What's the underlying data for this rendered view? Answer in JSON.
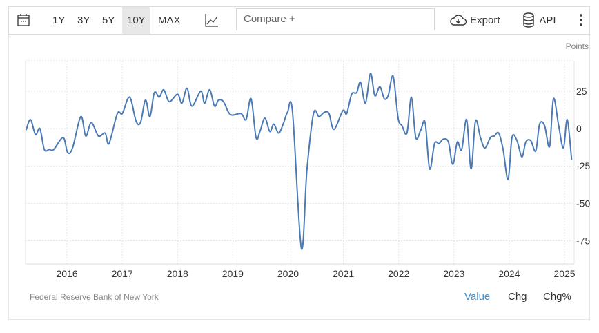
{
  "toolbar": {
    "calendar_icon": "calendar-icon",
    "ranges": [
      "1Y",
      "3Y",
      "5Y",
      "10Y",
      "MAX"
    ],
    "active_range": "10Y",
    "chart_type_icon": "line-chart-icon",
    "compare_placeholder": "Compare +",
    "export_label": "Export",
    "api_label": "API",
    "more_icon": "more-vertical-icon"
  },
  "footer": {
    "source": "Federal Reserve Bank of New York",
    "modes": [
      "Value",
      "Chg",
      "Chg%"
    ],
    "active_mode": "Value"
  },
  "colors": {
    "line": "#4a7ab5",
    "active_mode": "#3a8fd8",
    "grid": "#e4e4e4"
  },
  "chart_data": {
    "type": "line",
    "title": "",
    "ylabel": "Points",
    "xlabel": "",
    "x_ticks": [
      "2016",
      "2017",
      "2018",
      "2019",
      "2020",
      "2021",
      "2022",
      "2023",
      "2024",
      "2025"
    ],
    "y_ticks": [
      25,
      0,
      -25,
      -50,
      -75
    ],
    "xlim": [
      2015.25,
      2025.15
    ],
    "ylim": [
      -90.5,
      45.3
    ],
    "grid": true,
    "series": [
      {
        "name": "Value",
        "x": [
          2015.26,
          2015.34,
          2015.43,
          2015.51,
          2015.59,
          2015.68,
          2015.76,
          2015.93,
          2016.01,
          2016.1,
          2016.25,
          2016.34,
          2016.44,
          2016.57,
          2016.69,
          2016.76,
          2016.91,
          2017.0,
          2017.1,
          2017.16,
          2017.25,
          2017.33,
          2017.42,
          2017.5,
          2017.58,
          2017.67,
          2017.75,
          2017.85,
          2018.0,
          2018.08,
          2018.17,
          2018.26,
          2018.42,
          2018.49,
          2018.58,
          2018.67,
          2018.74,
          2018.83,
          2018.92,
          2018.99,
          2019.15,
          2019.24,
          2019.33,
          2019.42,
          2019.49,
          2019.58,
          2019.67,
          2019.74,
          2019.83,
          2019.92,
          2019.99,
          2020.08,
          2020.24,
          2020.34,
          2020.46,
          2020.56,
          2020.66,
          2020.74,
          2020.83,
          2020.99,
          2021.06,
          2021.15,
          2021.24,
          2021.31,
          2021.4,
          2021.49,
          2021.57,
          2021.66,
          2021.74,
          2021.81,
          2021.9,
          2021.99,
          2022.06,
          2022.15,
          2022.23,
          2022.31,
          2022.4,
          2022.48,
          2022.56,
          2022.65,
          2022.73,
          2022.81,
          2022.9,
          2022.98,
          2023.06,
          2023.14,
          2023.23,
          2023.31,
          2023.39,
          2023.48,
          2023.56,
          2023.66,
          2023.73,
          2023.81,
          2023.89,
          2023.98,
          2024.05,
          2024.14,
          2024.23,
          2024.3,
          2024.39,
          2024.48,
          2024.55,
          2024.64,
          2024.73,
          2024.8,
          2024.89,
          2024.98,
          2025.05,
          2025.13
        ],
        "values": [
          -1,
          6,
          -4,
          0,
          -14,
          -14,
          -14,
          -6,
          -16,
          -13,
          8,
          -5,
          4,
          -5,
          -3,
          -10,
          10,
          10,
          20,
          19,
          5,
          4,
          19,
          8,
          24,
          21,
          26,
          18,
          23,
          17,
          27,
          15,
          25,
          17,
          26,
          15,
          19,
          18,
          11,
          9,
          10,
          6,
          20,
          -6,
          -2,
          7,
          -2,
          3,
          -3,
          4,
          11,
          11,
          -80,
          -28,
          10,
          8,
          11,
          10,
          -0.5,
          12,
          10,
          23,
          24,
          31,
          17,
          37,
          22,
          28,
          20,
          22,
          35,
          7,
          2,
          -3,
          21,
          -6,
          -1,
          4,
          -27,
          -10,
          -10,
          -7,
          -9,
          -24,
          -9,
          -14,
          6,
          -27,
          5,
          -6,
          -13,
          -6,
          -5,
          -3,
          -14,
          -34,
          -6,
          -8,
          -19,
          -9,
          -8,
          -15,
          3,
          2,
          -12,
          20,
          3,
          -13,
          6,
          -21
        ]
      }
    ]
  }
}
